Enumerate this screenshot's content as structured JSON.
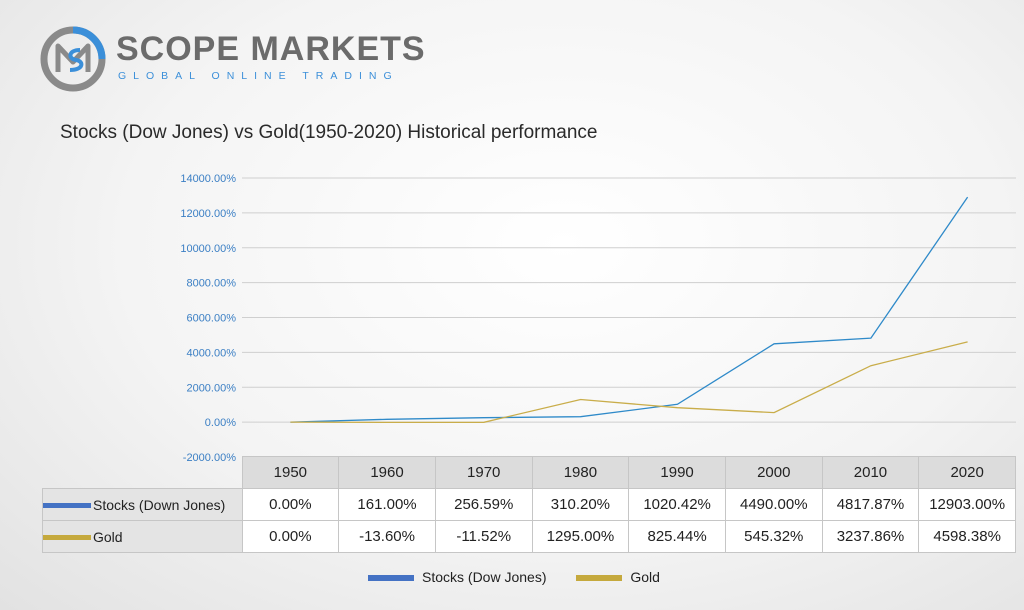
{
  "brand": {
    "name": "SCOPE MARKETS",
    "tagline": "GLOBAL ONLINE TRADING",
    "colors": {
      "ring": "#8a8a8a",
      "accent": "#3b8fd9",
      "text": "#6b6b6b"
    }
  },
  "chart_data": {
    "type": "line",
    "title": "Stocks (Dow Jones) vs Gold(1950-2020) Historical performance",
    "xlabel": "",
    "ylabel": "",
    "categories": [
      "1950",
      "1960",
      "1970",
      "1980",
      "1990",
      "2000",
      "2010",
      "2020"
    ],
    "ylim": [
      -2000,
      14000
    ],
    "yticks": [
      -2000,
      0,
      2000,
      4000,
      6000,
      8000,
      10000,
      12000,
      14000
    ],
    "ytick_labels": [
      "-2000.00%",
      "0.00%",
      "2000.00%",
      "4000.00%",
      "6000.00%",
      "8000.00%",
      "10000.00%",
      "12000.00%",
      "14000.00%"
    ],
    "grid": true,
    "legend_position": "bottom",
    "series": [
      {
        "name": "Stocks (Dow Jones)",
        "table_name": "Stocks (Down Jones)",
        "color": "#2f8ac9",
        "swatch_color": "#4472c4",
        "values": [
          0,
          161,
          256.59,
          310.2,
          1020.42,
          4490,
          4817.87,
          12903
        ],
        "labels": [
          "0.00%",
          "161.00%",
          "256.59%",
          "310.20%",
          "1020.42%",
          "4490.00%",
          "4817.87%",
          "12903.00%"
        ]
      },
      {
        "name": "Gold",
        "table_name": "Gold",
        "color": "#c9ad4a",
        "swatch_color": "#c5a93d",
        "values": [
          0,
          -13.6,
          -11.52,
          1295,
          825.44,
          545.32,
          3237.86,
          4598.38
        ],
        "labels": [
          "0.00%",
          "-13.60%",
          "-11.52%",
          "1295.00%",
          "825.44%",
          "545.32%",
          "3237.86%",
          "4598.38%"
        ]
      }
    ]
  }
}
